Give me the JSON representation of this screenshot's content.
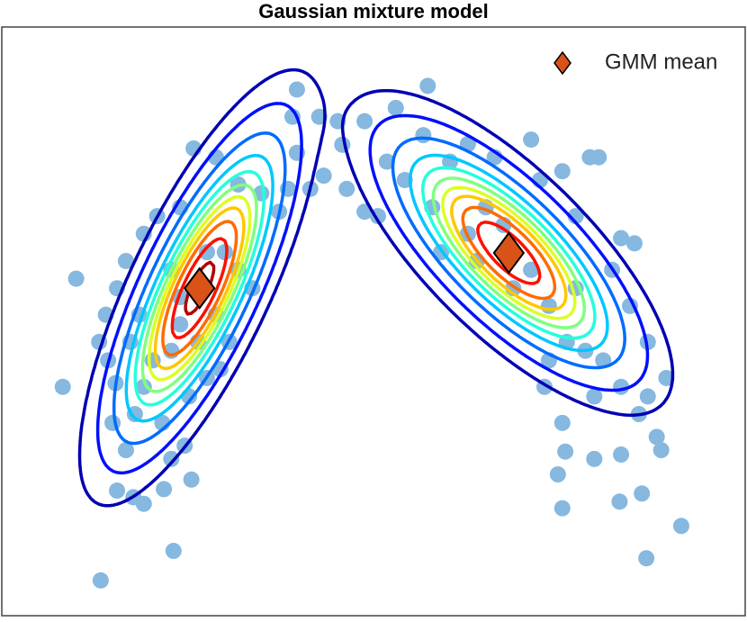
{
  "chart_data": {
    "type": "scatter",
    "title": "Gaussian mixture model",
    "xlim": [
      0,
      10
    ],
    "ylim": [
      0,
      8
    ],
    "legend": "upper right",
    "points": {
      "color": "#86b8e0",
      "x": [
        1.0,
        0.82,
        1.33,
        2.31,
        1.55,
        1.77,
        1.91,
        2.18,
        2.55,
        2.46,
        2.28,
        1.49,
        1.43,
        1.4,
        1.55,
        1.67,
        1.91,
        2.09,
        2.4,
        2.58,
        2.88,
        3.18,
        3.49,
        3.73,
        3.85,
        3.97,
        3.91,
        3.97,
        4.27,
        4.52,
        4.58,
        4.33,
        4.64,
        4.88,
        4.15,
        3.0,
        3.18,
        3.37,
        2.88,
        2.4,
        2.28,
        2.03,
        1.91,
        1.79,
        1.67,
        2.16,
        2.52,
        2.76,
        2.94,
        3.06,
        2.64,
        2.4,
        2.28,
        2.76,
        1.85,
        1.73,
        1.53,
        1.31,
        4.88,
        5.3,
        5.73,
        5.67,
        6.03,
        6.27,
        6.63,
        7.12,
        7.24,
        7.54,
        7.91,
        8.03,
        7.72,
        8.33,
        8.51,
        8.21,
        8.45,
        8.69,
        8.94,
        8.69,
        8.57,
        8.33,
        8.09,
        7.85,
        7.6,
        7.36,
        7.3,
        7.54,
        7.97,
        7.58,
        7.48,
        7.97,
        8.33,
        8.81,
        8.87,
        7.54,
        8.31,
        8.61,
        9.14,
        8.67,
        6.51,
        6.27,
        5.79,
        5.42,
        6.88,
        7.12,
        7.36,
        7.72,
        6.75,
        5.18,
        5.06,
        5.91,
        6.39
      ],
      "y": [
        4.58,
        3.11,
        0.48,
        0.88,
        1.7,
        1.61,
        1.52,
        1.72,
        1.85,
        2.31,
        2.13,
        2.62,
        3.47,
        4.09,
        4.45,
        4.82,
        5.19,
        5.43,
        5.55,
        6.35,
        6.23,
        5.86,
        5.74,
        5.49,
        5.8,
        6.29,
        6.78,
        7.15,
        6.78,
        6.72,
        6.4,
        5.98,
        5.8,
        5.49,
        5.8,
        4.94,
        4.7,
        4.45,
        4.09,
        3.96,
        3.6,
        3.47,
        3.11,
        2.74,
        2.25,
        2.62,
        2.98,
        3.23,
        3.35,
        3.72,
        3.72,
        4.33,
        4.7,
        4.94,
        4.09,
        3.72,
        3.16,
        3.72,
        6.72,
        6.9,
        7.2,
        6.53,
        6.17,
        6.41,
        6.23,
        6.47,
        5.92,
        6.04,
        6.23,
        6.23,
        5.43,
        5.13,
        5.06,
        4.7,
        4.21,
        3.72,
        3.23,
        2.98,
        2.74,
        3.11,
        3.47,
        3.6,
        3.72,
        3.47,
        3.11,
        2.62,
        2.98,
        2.23,
        1.92,
        2.13,
        2.19,
        2.43,
        2.25,
        1.46,
        1.55,
        1.66,
        1.22,
        0.78,
        5.55,
        5.19,
        5.55,
        5.92,
        4.45,
        4.7,
        4.21,
        4.45,
        5.31,
        6.17,
        5.43,
        4.94,
        4.82
      ]
    },
    "series": [
      {
        "name": "GMM mean",
        "color": "#d95319",
        "x": [
          2.66,
          6.82
        ],
        "y": [
          4.45,
          4.93
        ]
      }
    ],
    "components": [
      {
        "weight": 0.5,
        "cov": [
          0.301,
          0.424,
          1.011
        ]
      },
      {
        "weight": 0.5,
        "cov": [
          0.572,
          -0.428,
          0.572
        ]
      }
    ],
    "contour_levels": [
      0.003,
      0.01,
      0.025,
      0.045,
      0.065,
      0.085,
      0.105,
      0.125,
      0.15,
      0.18,
      0.212
    ]
  }
}
